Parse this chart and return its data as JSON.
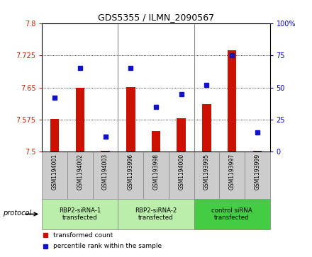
{
  "title": "GDS5355 / ILMN_2090567",
  "samples": [
    "GSM1194001",
    "GSM1194002",
    "GSM1194003",
    "GSM1193996",
    "GSM1193998",
    "GSM1194000",
    "GSM1193995",
    "GSM1193997",
    "GSM1193999"
  ],
  "red_values": [
    7.577,
    7.65,
    7.502,
    7.651,
    7.548,
    7.578,
    7.612,
    7.737,
    7.503
  ],
  "blue_values": [
    42,
    65,
    12,
    65,
    35,
    45,
    52,
    75,
    15
  ],
  "groups": [
    {
      "label": "RBP2-siRNA-1\ntransfected",
      "start": 0,
      "end": 3,
      "color": "#bbeeaa"
    },
    {
      "label": "RBP2-siRNA-2\ntransfected",
      "start": 3,
      "end": 6,
      "color": "#bbeeaa"
    },
    {
      "label": "control siRNA\ntransfected",
      "start": 6,
      "end": 9,
      "color": "#44cc44"
    }
  ],
  "ylim_left": [
    7.5,
    7.8
  ],
  "ylim_right": [
    0,
    100
  ],
  "yticks_left": [
    7.5,
    7.575,
    7.65,
    7.725,
    7.8
  ],
  "yticks_right": [
    0,
    25,
    50,
    75,
    100
  ],
  "ytick_labels_left": [
    "7.5",
    "7.575",
    "7.65",
    "7.725",
    "7.8"
  ],
  "ytick_labels_right": [
    "0",
    "25",
    "50",
    "75",
    "100%"
  ],
  "bar_color": "#cc1100",
  "dot_color": "#1111cc",
  "bar_width": 0.35,
  "protocol_label": "protocol",
  "legend_red_label": "transformed count",
  "legend_blue_label": "percentile rank within the sample",
  "sample_box_color": "#cccccc",
  "divider_color": "#888888"
}
